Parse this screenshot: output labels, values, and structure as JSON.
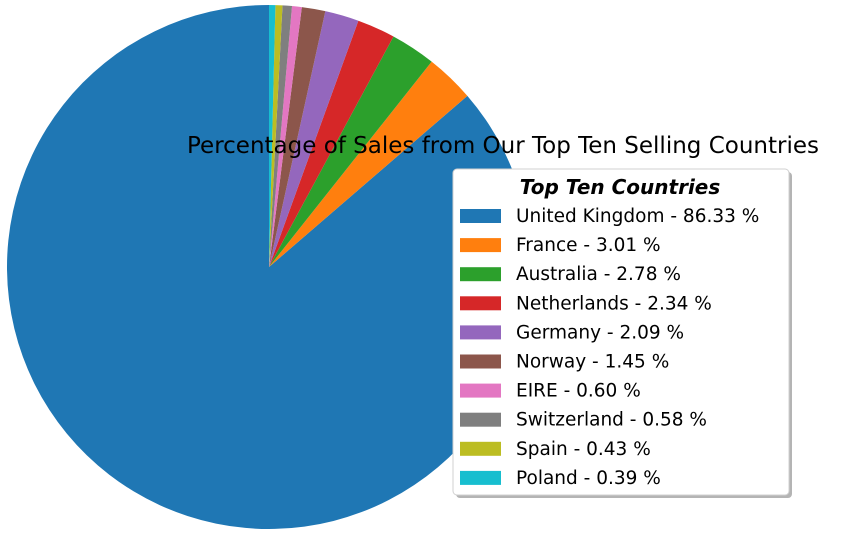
{
  "chart_data": {
    "type": "pie",
    "title": "Percentage of Sales from Our Top Ten Selling Countries",
    "legend": {
      "title": "Top Ten Countries",
      "placement": "right",
      "shadow": true
    },
    "start_angle_deg": 90,
    "direction": "counterclockwise",
    "slices": [
      {
        "label": "United Kingdom",
        "value": 86.33,
        "display": "United Kingdom - 86.33 %",
        "color": "#1f77b4"
      },
      {
        "label": "France",
        "value": 3.01,
        "display": "France - 3.01 %",
        "color": "#ff7f0e"
      },
      {
        "label": "Australia",
        "value": 2.78,
        "display": "Australia - 2.78 %",
        "color": "#2ca02c"
      },
      {
        "label": "Netherlands",
        "value": 2.34,
        "display": "Netherlands - 2.34 %",
        "color": "#d62728"
      },
      {
        "label": "Germany",
        "value": 2.09,
        "display": "Germany - 2.09 %",
        "color": "#9467bd"
      },
      {
        "label": "Norway",
        "value": 1.45,
        "display": "Norway - 1.45 %",
        "color": "#8c564b"
      },
      {
        "label": "EIRE",
        "value": 0.6,
        "display": "EIRE - 0.60 %",
        "color": "#e377c2"
      },
      {
        "label": "Switzerland",
        "value": 0.58,
        "display": "Switzerland - 0.58 %",
        "color": "#7f7f7f"
      },
      {
        "label": "Spain",
        "value": 0.43,
        "display": "Spain - 0.43 %",
        "color": "#bcbd22"
      },
      {
        "label": "Poland",
        "value": 0.39,
        "display": "Poland - 0.39 %",
        "color": "#17becf"
      }
    ]
  }
}
